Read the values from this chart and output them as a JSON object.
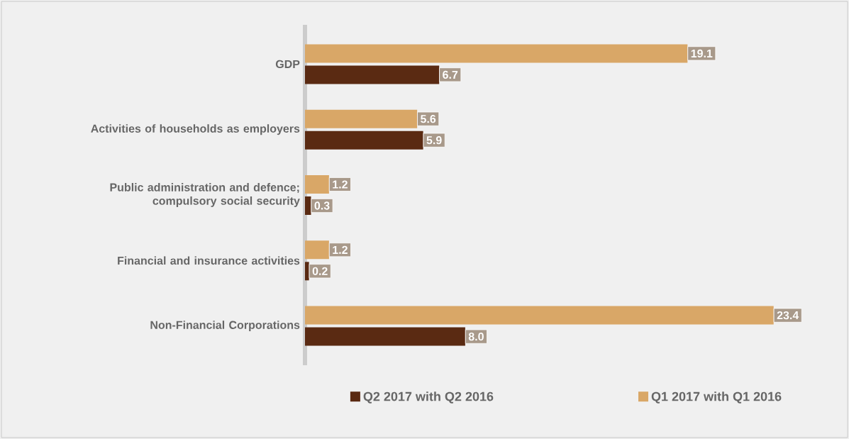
{
  "chart_data": {
    "type": "bar",
    "orientation": "horizontal",
    "categories": [
      "GDP",
      "Activities of households as employers",
      "Public administration and defence; compulsory social security",
      "Financial and insurance activities",
      "Non-Financial Corporations"
    ],
    "series": [
      {
        "name": "Q2 2017 with Q2 2016",
        "color": "#5a2a12",
        "values": [
          6.7,
          5.9,
          0.3,
          0.2,
          8.0
        ],
        "value_labels": [
          "6.7",
          "5.9",
          "0.3",
          "0.2",
          "8.0"
        ]
      },
      {
        "name": "Q1 2017 with Q1 2016",
        "color": "#d9a767",
        "values": [
          19.1,
          5.6,
          1.2,
          1.2,
          23.4
        ],
        "value_labels": [
          "19.1",
          "5.6",
          "1.2",
          "1.2",
          "23.4"
        ]
      }
    ],
    "legend": "bottom"
  }
}
